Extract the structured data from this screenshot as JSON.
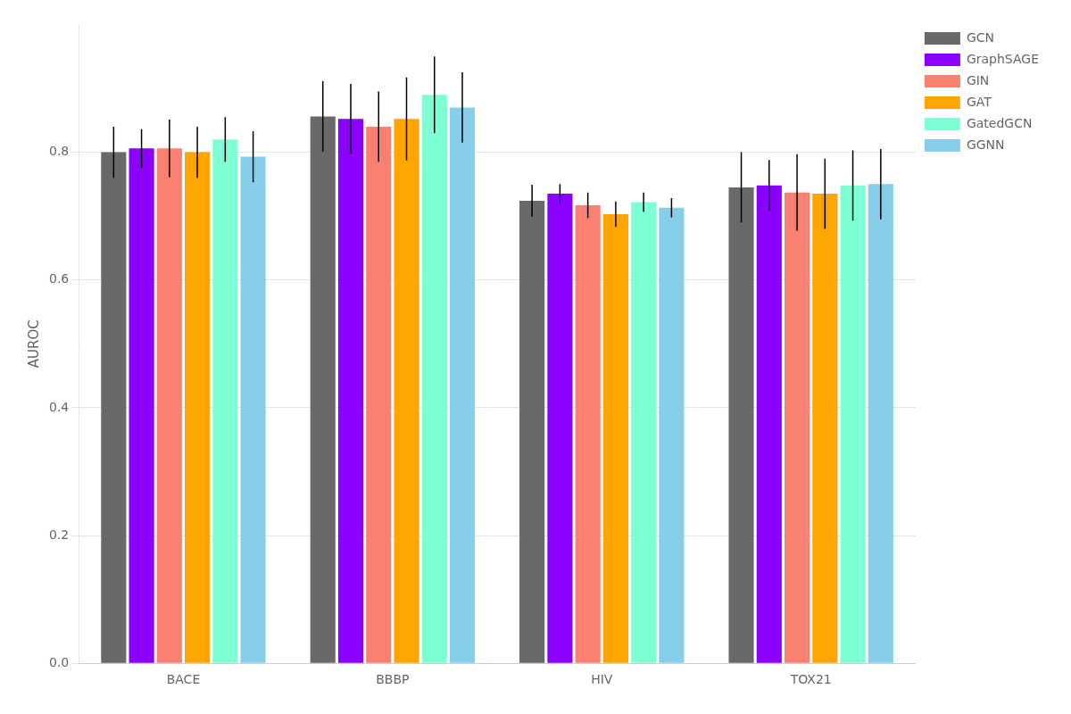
{
  "chart_data": {
    "type": "bar",
    "ylabel": "AUROC",
    "categories": [
      "BACE",
      "BBBP",
      "HIV",
      "TOX21"
    ],
    "series": [
      {
        "name": "GCN",
        "color": "#696969",
        "values": [
          0.8,
          0.856,
          0.724,
          0.745
        ],
        "errors": [
          0.04,
          0.055,
          0.025,
          0.055
        ]
      },
      {
        "name": "GraphSAGE",
        "color": "#8B00FF",
        "values": [
          0.806,
          0.852,
          0.735,
          0.748
        ],
        "errors": [
          0.03,
          0.055,
          0.015,
          0.04
        ]
      },
      {
        "name": "GIN",
        "color": "#FA8072",
        "values": [
          0.806,
          0.84,
          0.717,
          0.737
        ],
        "errors": [
          0.045,
          0.055,
          0.02,
          0.06
        ]
      },
      {
        "name": "GAT",
        "color": "#FFA500",
        "values": [
          0.8,
          0.852,
          0.703,
          0.735
        ],
        "errors": [
          0.04,
          0.065,
          0.02,
          0.055
        ]
      },
      {
        "name": "GatedGCN",
        "color": "#7FFFD4",
        "values": [
          0.82,
          0.89,
          0.722,
          0.748
        ],
        "errors": [
          0.035,
          0.06,
          0.015,
          0.055
        ]
      },
      {
        "name": "GGNN",
        "color": "#87CEEB",
        "values": [
          0.793,
          0.87,
          0.713,
          0.75
        ],
        "errors": [
          0.04,
          0.055,
          0.015,
          0.055
        ]
      }
    ],
    "ylim": [
      0.0,
      1.0
    ],
    "yticks": [
      {
        "value": 0.0,
        "label": "0.0"
      },
      0.2,
      0.4,
      0.6,
      0.8
    ],
    "grid": true,
    "legend": "right"
  }
}
